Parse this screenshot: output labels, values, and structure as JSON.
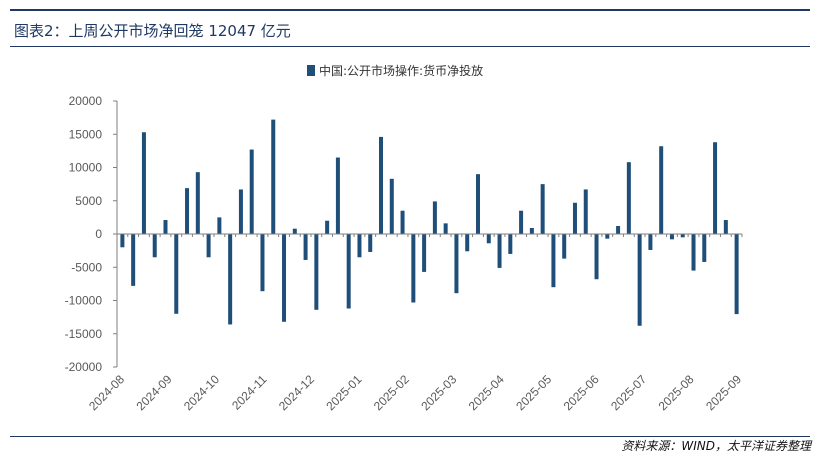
{
  "header": {
    "title": "图表2：上周公开市场净回笼 12047 亿元"
  },
  "footer": {
    "source": "资料来源：WIND，太平洋证券整理"
  },
  "colors": {
    "bar": "#1f4e79",
    "accent": "#1f3864",
    "axis": "#7f7f7f"
  },
  "chart_data": {
    "type": "bar",
    "title": "",
    "xlabel": "",
    "ylabel": "",
    "ylim": [
      -20000,
      20000
    ],
    "yticks": [
      20000,
      15000,
      10000,
      5000,
      0,
      -5000,
      -10000,
      -15000,
      -20000
    ],
    "grid": false,
    "legend_position": "top",
    "x_tick_labels": [
      "2024-08",
      "2024-09",
      "2024-10",
      "2024-11",
      "2024-12",
      "2025-01",
      "2025-02",
      "2025-03",
      "2025-04",
      "2025-05",
      "2025-06",
      "2025-07",
      "2025-08",
      "2025-09"
    ],
    "series": [
      {
        "name": "中国:公开市场操作:货币净投放",
        "values": [
          -2000,
          -7800,
          15300,
          -3500,
          2100,
          -12000,
          6900,
          9300,
          -3500,
          2500,
          -13600,
          6700,
          12700,
          -8600,
          17200,
          -13200,
          800,
          -3900,
          -11400,
          2000,
          11500,
          -11200,
          -3500,
          -2700,
          14600,
          8300,
          3500,
          -10300,
          -5700,
          4900,
          1600,
          -8900,
          -2600,
          9000,
          -1400,
          -5100,
          -3000,
          3500,
          900,
          7500,
          -8000,
          -3700,
          4700,
          6700,
          -6800,
          -700,
          1200,
          10800,
          -13800,
          -2400,
          13200,
          -800,
          -500,
          -5500,
          -4200,
          13800,
          2100,
          -12047
        ]
      }
    ]
  }
}
